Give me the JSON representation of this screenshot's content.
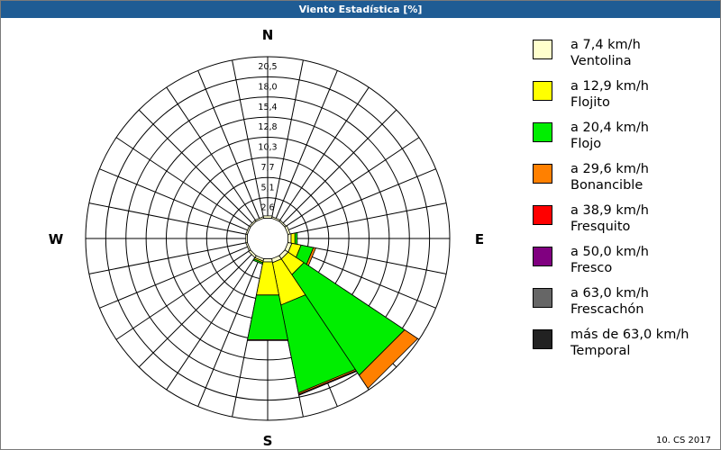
{
  "window": {
    "title": "Viento Estadística [%]"
  },
  "compass": {
    "n": "N",
    "e": "E",
    "s": "S",
    "w": "W"
  },
  "footer": "10. CS 2017",
  "chart_data": {
    "type": "wind-rose",
    "title": "Viento Estadística [%]",
    "ring_labels": [
      "2,6",
      "5,1",
      "7,7",
      "10,3",
      "12,8",
      "15,4",
      "18,0",
      "20,5"
    ],
    "rmax": 20.5,
    "sectors": [
      0,
      22.5,
      45,
      67.5,
      90,
      112.5,
      135,
      157.5,
      180,
      202.5,
      225,
      247.5,
      270,
      292.5,
      315,
      337.5
    ],
    "classes": [
      {
        "label": "a 7,4 km/h",
        "name": "Ventolina",
        "color": "#ffffcc"
      },
      {
        "label": "a 12,9 km/h",
        "name": "Flojito",
        "color": "#ffff00"
      },
      {
        "label": "a 20,4 km/h",
        "name": "Flojo",
        "color": "#00ee00"
      },
      {
        "label": "a 29,6 km/h",
        "name": "Bonancible",
        "color": "#ff8000"
      },
      {
        "label": "a 38,9 km/h",
        "name": "Fresquito",
        "color": "#ff0000"
      },
      {
        "label": "a 50,0 km/h",
        "name": "Fresco",
        "color": "#800080"
      },
      {
        "label": "a 63,0 km/h",
        "name": "Frescachón",
        "color": "#666666"
      },
      {
        "label": "más de 63,0 km/h",
        "name": "Temporal",
        "color": "#222222"
      }
    ],
    "series": [
      {
        "name": "Ventolina",
        "values": [
          0.3,
          0.2,
          0.2,
          0.3,
          0.4,
          0.5,
          0.5,
          0.5,
          0.4,
          0.3,
          0.3,
          0.2,
          0.2,
          0.2,
          0.2,
          0.2
        ]
      },
      {
        "name": "Flojito",
        "values": [
          0,
          0,
          0,
          0,
          0.5,
          1.2,
          2.4,
          5.5,
          4.3,
          0.2,
          0,
          0,
          0,
          0,
          0,
          0
        ]
      },
      {
        "name": "Flojo",
        "values": [
          0,
          0,
          0,
          0,
          0.3,
          1.6,
          15.4,
          11.4,
          5.8,
          0.2,
          0,
          0,
          0,
          0,
          0,
          0
        ]
      },
      {
        "name": "Bonancible",
        "values": [
          0,
          0,
          0,
          0,
          0,
          0.3,
          2.0,
          0.2,
          0.1,
          0,
          0,
          0,
          0,
          0,
          0,
          0
        ]
      },
      {
        "name": "Fresquito",
        "values": [
          0,
          0,
          0,
          0,
          0,
          0,
          0,
          0.1,
          0,
          0,
          0,
          0,
          0,
          0,
          0,
          0
        ]
      },
      {
        "name": "Fresco",
        "values": [
          0,
          0,
          0,
          0,
          0,
          0,
          0,
          0,
          0,
          0,
          0,
          0,
          0,
          0,
          0,
          0
        ]
      },
      {
        "name": "Frescachón",
        "values": [
          0,
          0,
          0,
          0,
          0,
          0,
          0,
          0,
          0,
          0,
          0,
          0,
          0,
          0,
          0,
          0
        ]
      },
      {
        "name": "Temporal",
        "values": [
          0,
          0,
          0,
          0,
          0,
          0,
          0,
          0,
          0,
          0,
          0,
          0,
          0,
          0,
          0,
          0
        ]
      }
    ]
  }
}
